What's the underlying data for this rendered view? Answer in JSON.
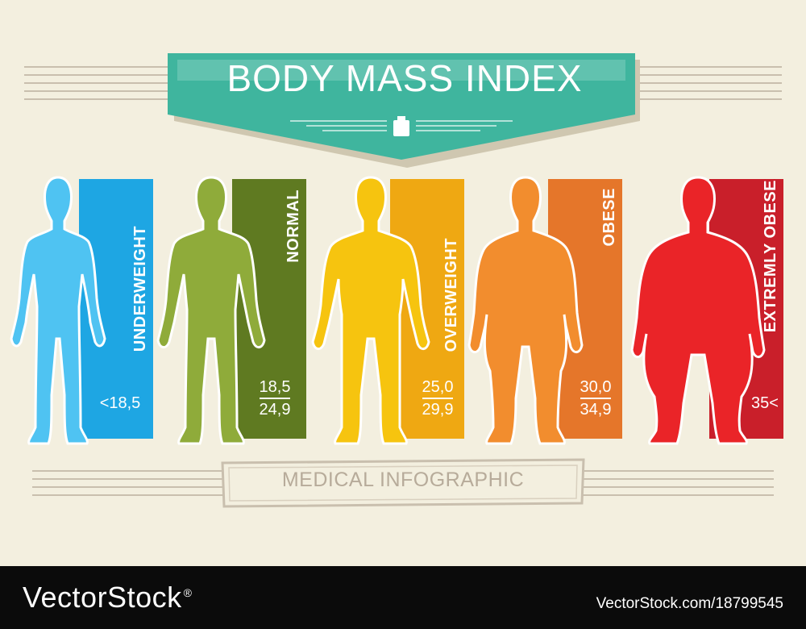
{
  "title": "BODY MASS INDEX",
  "subtitle": "MEDICAL INFOGRAPHIC",
  "categories": [
    {
      "label": "UNDERWEIGHT",
      "range_low": "<18,5",
      "range_high": "",
      "body_color": "#4fc3f2",
      "panel_color": "#1ea6e3"
    },
    {
      "label": "NORMAL",
      "range_low": "18,5",
      "range_high": "24,9",
      "body_color": "#8fab3a",
      "panel_color": "#5f7a21"
    },
    {
      "label": "OVERWEIGHT",
      "range_low": "25,0",
      "range_high": "29,9",
      "body_color": "#f6c40f",
      "panel_color": "#efa812"
    },
    {
      "label": "OBESE",
      "range_low": "30,0",
      "range_high": "34,9",
      "body_color": "#f28d2e",
      "panel_color": "#e5762a"
    },
    {
      "label": "EXTREMLY OBESE",
      "range_low": "35<",
      "range_high": "",
      "body_color": "#ea2428",
      "panel_color": "#c91f2a"
    }
  ],
  "footer": {
    "brand": "VectorStock",
    "registered": "®",
    "url": "VectorStock.com/18799545"
  },
  "colors": {
    "background": "#f3efdf",
    "banner": "#3fb59e",
    "banner_shadow": "#cfc7b0",
    "lines": "#c9bfae",
    "footer": "#0b0b0b"
  },
  "icons": [
    "weight-icon"
  ]
}
